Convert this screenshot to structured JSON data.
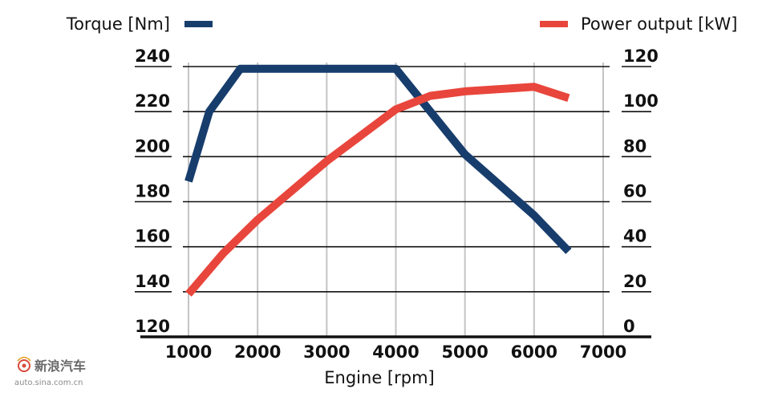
{
  "chart_data": {
    "type": "line",
    "xlabel": "Engine [rpm]",
    "x_ticks": [
      1000,
      2000,
      3000,
      4000,
      5000,
      6000,
      7000
    ],
    "xlim": [
      1000,
      7000
    ],
    "left_axis": {
      "label": "Torque [Nm]",
      "ylim": [
        120,
        240
      ],
      "ticks": [
        120,
        140,
        160,
        180,
        200,
        220,
        240
      ]
    },
    "right_axis": {
      "label": "Power output [kW]",
      "ylim": [
        0,
        120
      ],
      "ticks": [
        0,
        20,
        40,
        60,
        80,
        100,
        120
      ]
    },
    "series": [
      {
        "name": "Torque [Nm]",
        "axis": "left",
        "color": "#173d6d",
        "x": [
          1000,
          1300,
          1750,
          2000,
          3000,
          4000,
          5000,
          6000,
          6500
        ],
        "y": [
          189,
          220,
          239,
          239,
          239,
          239,
          201,
          174,
          158
        ]
      },
      {
        "name": "Power output [kW]",
        "axis": "right",
        "color": "#e8463c",
        "x": [
          1000,
          1500,
          2000,
          3000,
          4000,
          4500,
          5000,
          6000,
          6500
        ],
        "y": [
          19,
          37,
          52,
          78,
          101,
          107,
          109,
          111,
          106
        ]
      }
    ]
  },
  "watermark": {
    "site_name": "新浪汽车",
    "url": "auto.sina.com.cn",
    "logo_icon": "sina-eye-logo-icon"
  }
}
